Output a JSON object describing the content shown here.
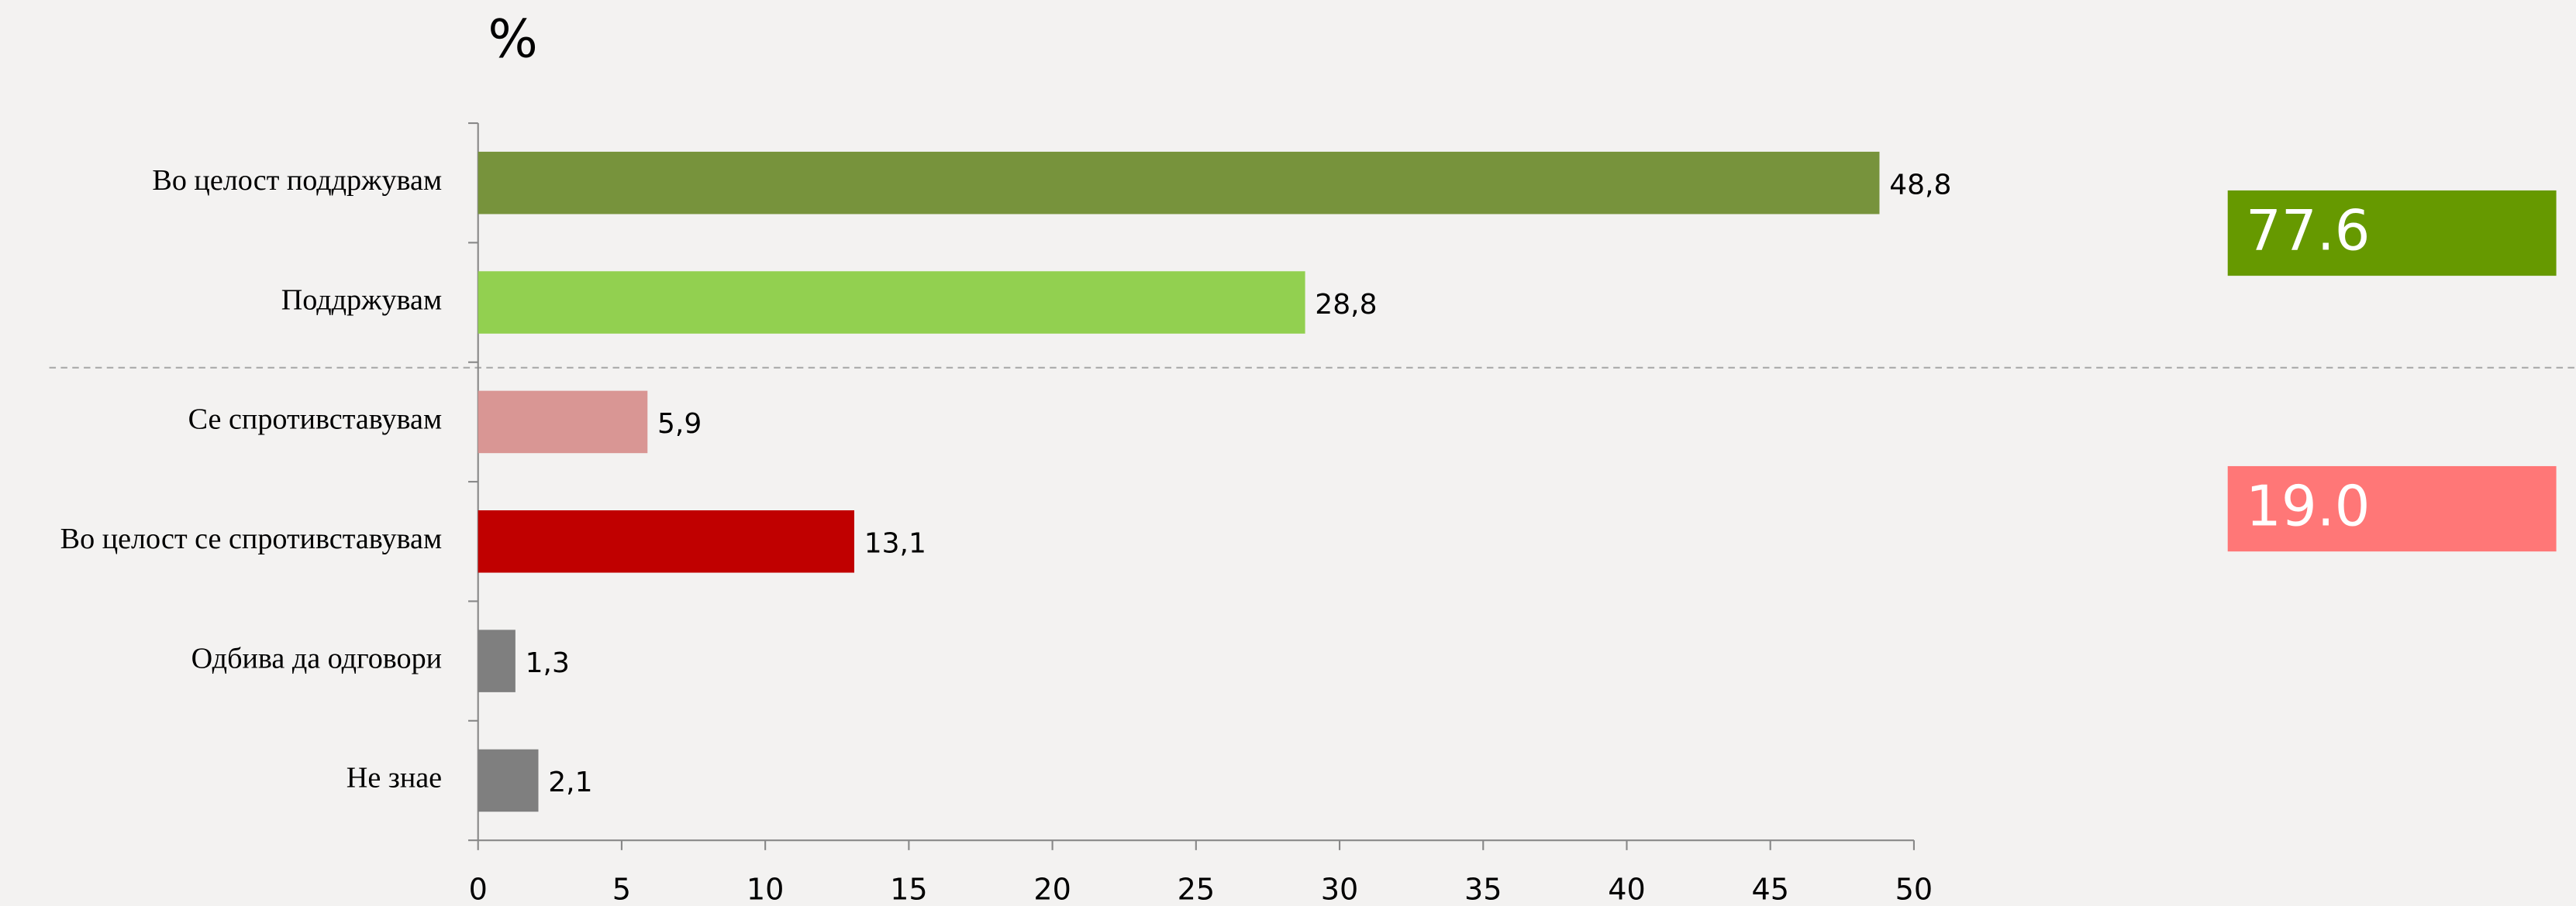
{
  "chart_data": {
    "type": "hbar",
    "title": "%",
    "categories": [
      "Во целост поддржувам",
      "Поддржувам",
      "Се спротивставувам",
      "Во целост се спротивставувам",
      "Одбива да одговори",
      "Не знае"
    ],
    "values": [
      48.8,
      28.8,
      5.9,
      13.1,
      1.3,
      2.1
    ],
    "value_labels": [
      "48,8",
      "28,8",
      "5,9",
      "13,1",
      "1,3",
      "2,1"
    ],
    "colors": [
      "#77933c",
      "#92d050",
      "#d99694",
      "#c00000",
      "#7f7f7f",
      "#7f7f7f"
    ],
    "xlim": [
      0,
      50
    ],
    "xticks": [
      0,
      5,
      10,
      15,
      20,
      25,
      30,
      35,
      40,
      45,
      50
    ],
    "annotations": [
      {
        "text": "77.6",
        "color": "#669900"
      },
      {
        "text": "19.0",
        "color": "#ff7777"
      }
    ]
  }
}
